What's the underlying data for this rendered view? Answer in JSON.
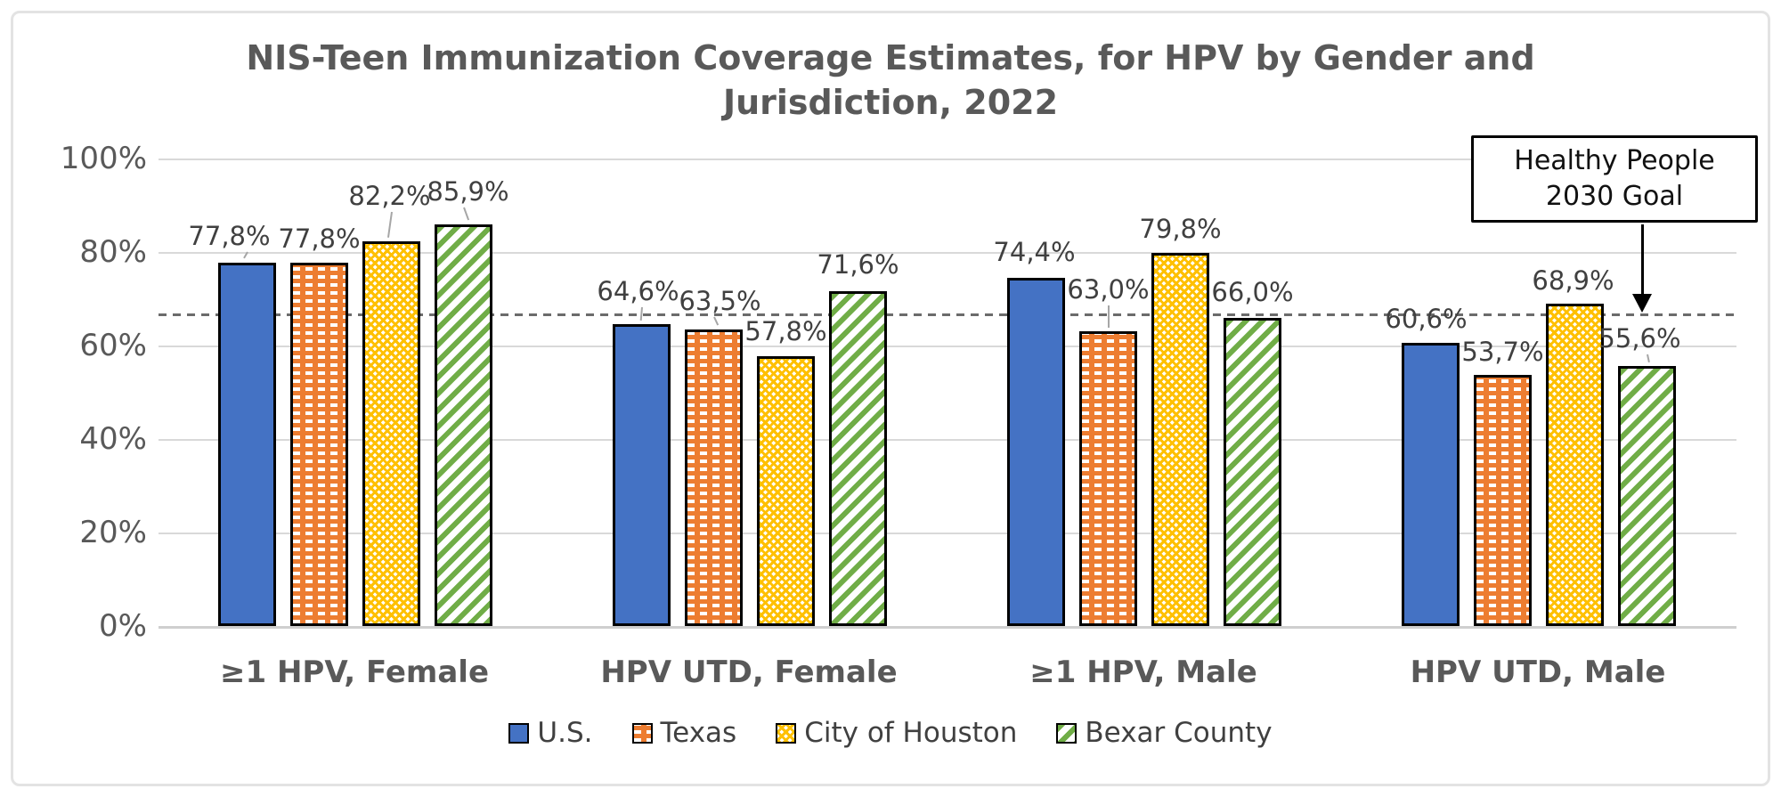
{
  "chart_data": {
    "type": "bar",
    "title": "NIS-Teen Immunization Coverage Estimates, for HPV by Gender and Jurisdiction, 2022",
    "title_lines": [
      "NIS-Teen Immunization Coverage Estimates, for HPV by Gender and",
      "Jurisdiction, 2022"
    ],
    "categories": [
      "≥1 HPV, Female",
      "HPV UTD, Female",
      "≥1 HPV, Male",
      "HPV UTD, Male"
    ],
    "series": [
      {
        "name": "U.S.",
        "color": "#4472C4",
        "pattern": "solid",
        "values": [
          77.8,
          64.6,
          74.4,
          60.6
        ],
        "labels": [
          "77,8%",
          "64,6%",
          "74,4%",
          "60,6%"
        ],
        "label_dx": [
          -20,
          -4,
          -2,
          -5
        ],
        "label_dy": [
          15,
          22,
          14,
          12
        ],
        "leader": [
          true,
          true,
          false,
          false
        ],
        "leader_angle": [
          30,
          5,
          0,
          0
        ]
      },
      {
        "name": "Texas",
        "color": "#ED7D31",
        "pattern": "dashes",
        "values": [
          77.8,
          63.5,
          63.0,
          53.7
        ],
        "labels": [
          "77,8%",
          "63,5%",
          "63,0%",
          "53,7%"
        ],
        "label_dx": [
          0,
          7,
          0,
          0
        ],
        "label_dy": [
          12,
          17,
          32,
          11
        ],
        "leader": [
          false,
          true,
          true,
          false
        ],
        "leader_angle": [
          0,
          -25,
          0,
          0
        ]
      },
      {
        "name": "City of Houston",
        "color": "#FFC000",
        "pattern": "checker",
        "values": [
          82.2,
          57.8,
          79.8,
          68.9
        ],
        "labels": [
          "82,2%",
          "57,8%",
          "79,8%",
          "68,9%"
        ],
        "label_dx": [
          -2,
          0,
          0,
          -2
        ],
        "label_dy": [
          36,
          13,
          12,
          11
        ],
        "leader": [
          true,
          false,
          false,
          false
        ],
        "leader_angle": [
          8,
          0,
          0,
          0
        ]
      },
      {
        "name": "Bexar County",
        "color": "#70AD47",
        "pattern": "stripes",
        "values": [
          85.9,
          71.6,
          66.0,
          55.6
        ],
        "labels": [
          "85,9%",
          "71,6%",
          "66,0%",
          "55,6%"
        ],
        "label_dx": [
          5,
          0,
          0,
          -8
        ],
        "label_dy": [
          22,
          15,
          14,
          16
        ],
        "leader": [
          true,
          false,
          false,
          true
        ],
        "leader_angle": [
          -20,
          0,
          0,
          -12
        ]
      }
    ],
    "yticks": [
      0,
      20,
      40,
      60,
      80,
      100
    ],
    "ytick_labels": [
      "0%",
      "20%",
      "40%",
      "60%",
      "80%",
      "100%"
    ],
    "ylim": [
      0,
      100
    ],
    "grid": true,
    "legend_position": "bottom",
    "goal_line": {
      "value": 66.7,
      "label": "Healthy People 2030 Goal"
    },
    "annotation": {
      "lines": [
        "Healthy People",
        "2030 Goal"
      ]
    }
  }
}
